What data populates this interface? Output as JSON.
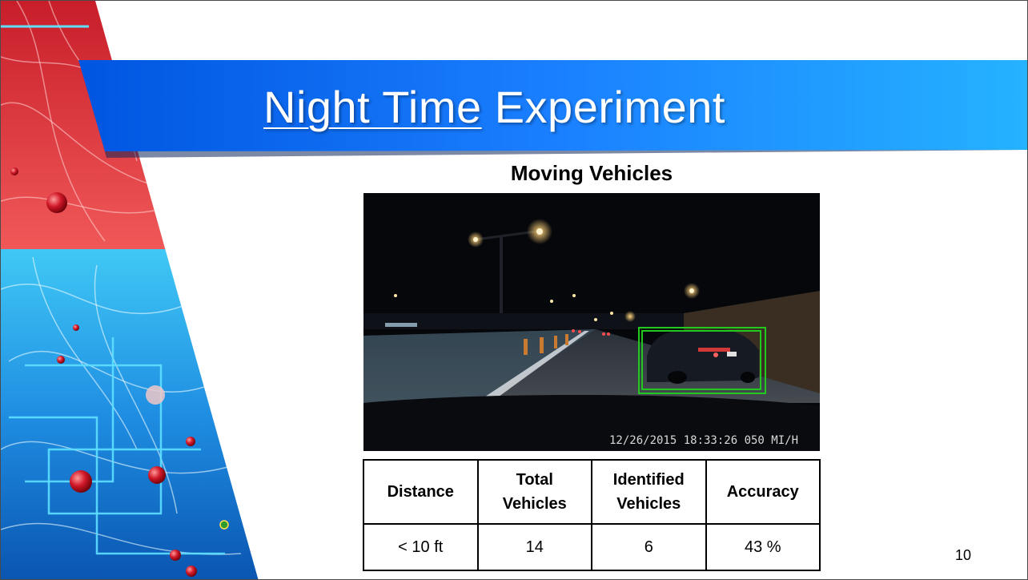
{
  "slide": {
    "title_part1": "Night Time",
    "title_part2": " Experiment",
    "subtitle": "Moving Vehicles",
    "page_number": "10"
  },
  "photo": {
    "overlay": "12/26/2015 18:33:26  050 MI/H"
  },
  "table": {
    "headers": [
      "Distance",
      "Total Vehicles",
      "Identified Vehicles",
      "Accuracy"
    ],
    "rows": [
      [
        "< 10 ft",
        "14",
        "6",
        "43 %"
      ]
    ]
  },
  "colors": {
    "banner_left": "#0055e0",
    "banner_right": "#25b2ff",
    "deco_red": "#e23a3a",
    "deco_blue": "#1e8ee0",
    "detection_box": "#22c81e"
  }
}
